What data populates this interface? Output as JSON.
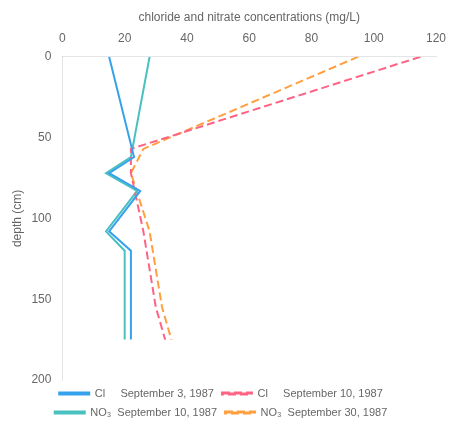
{
  "chart_data": {
    "type": "line",
    "xlabel": "chloride and nitrate concentrations (mg/L)",
    "ylabel": "depth (cm)",
    "xlim": [
      0,
      120
    ],
    "ylim": [
      200,
      0
    ],
    "xticks": [
      0,
      20,
      40,
      60,
      80,
      100,
      120
    ],
    "yticks": [
      0,
      50,
      100,
      150,
      200
    ],
    "grid": false,
    "legend": "bottom",
    "series": [
      {
        "name": "Cl     September 3, 1987",
        "line_style": "solid",
        "x": [
          15,
          23,
          15,
          25,
          15,
          22,
          22,
          22
        ],
        "values": [
          0,
          62,
          72,
          83,
          108,
          120,
          145,
          175
        ]
      },
      {
        "name": "Cl     September 10, 1987",
        "line_style": "dashed",
        "x": [
          115,
          22,
          22,
          26,
          30,
          33
        ],
        "values": [
          0,
          57,
          72,
          108,
          155,
          175
        ]
      },
      {
        "name": "NO₃  September 10, 1987",
        "line_style": "solid",
        "x": [
          28,
          22,
          14,
          24,
          14,
          20,
          20,
          20
        ],
        "values": [
          0,
          62,
          72,
          83,
          108,
          120,
          145,
          175
        ]
      },
      {
        "name": "NO₃  September 30, 1987",
        "line_style": "dashed",
        "x": [
          95,
          26,
          22,
          28,
          32,
          35
        ],
        "values": [
          0,
          57,
          72,
          108,
          155,
          175
        ]
      }
    ]
  }
}
